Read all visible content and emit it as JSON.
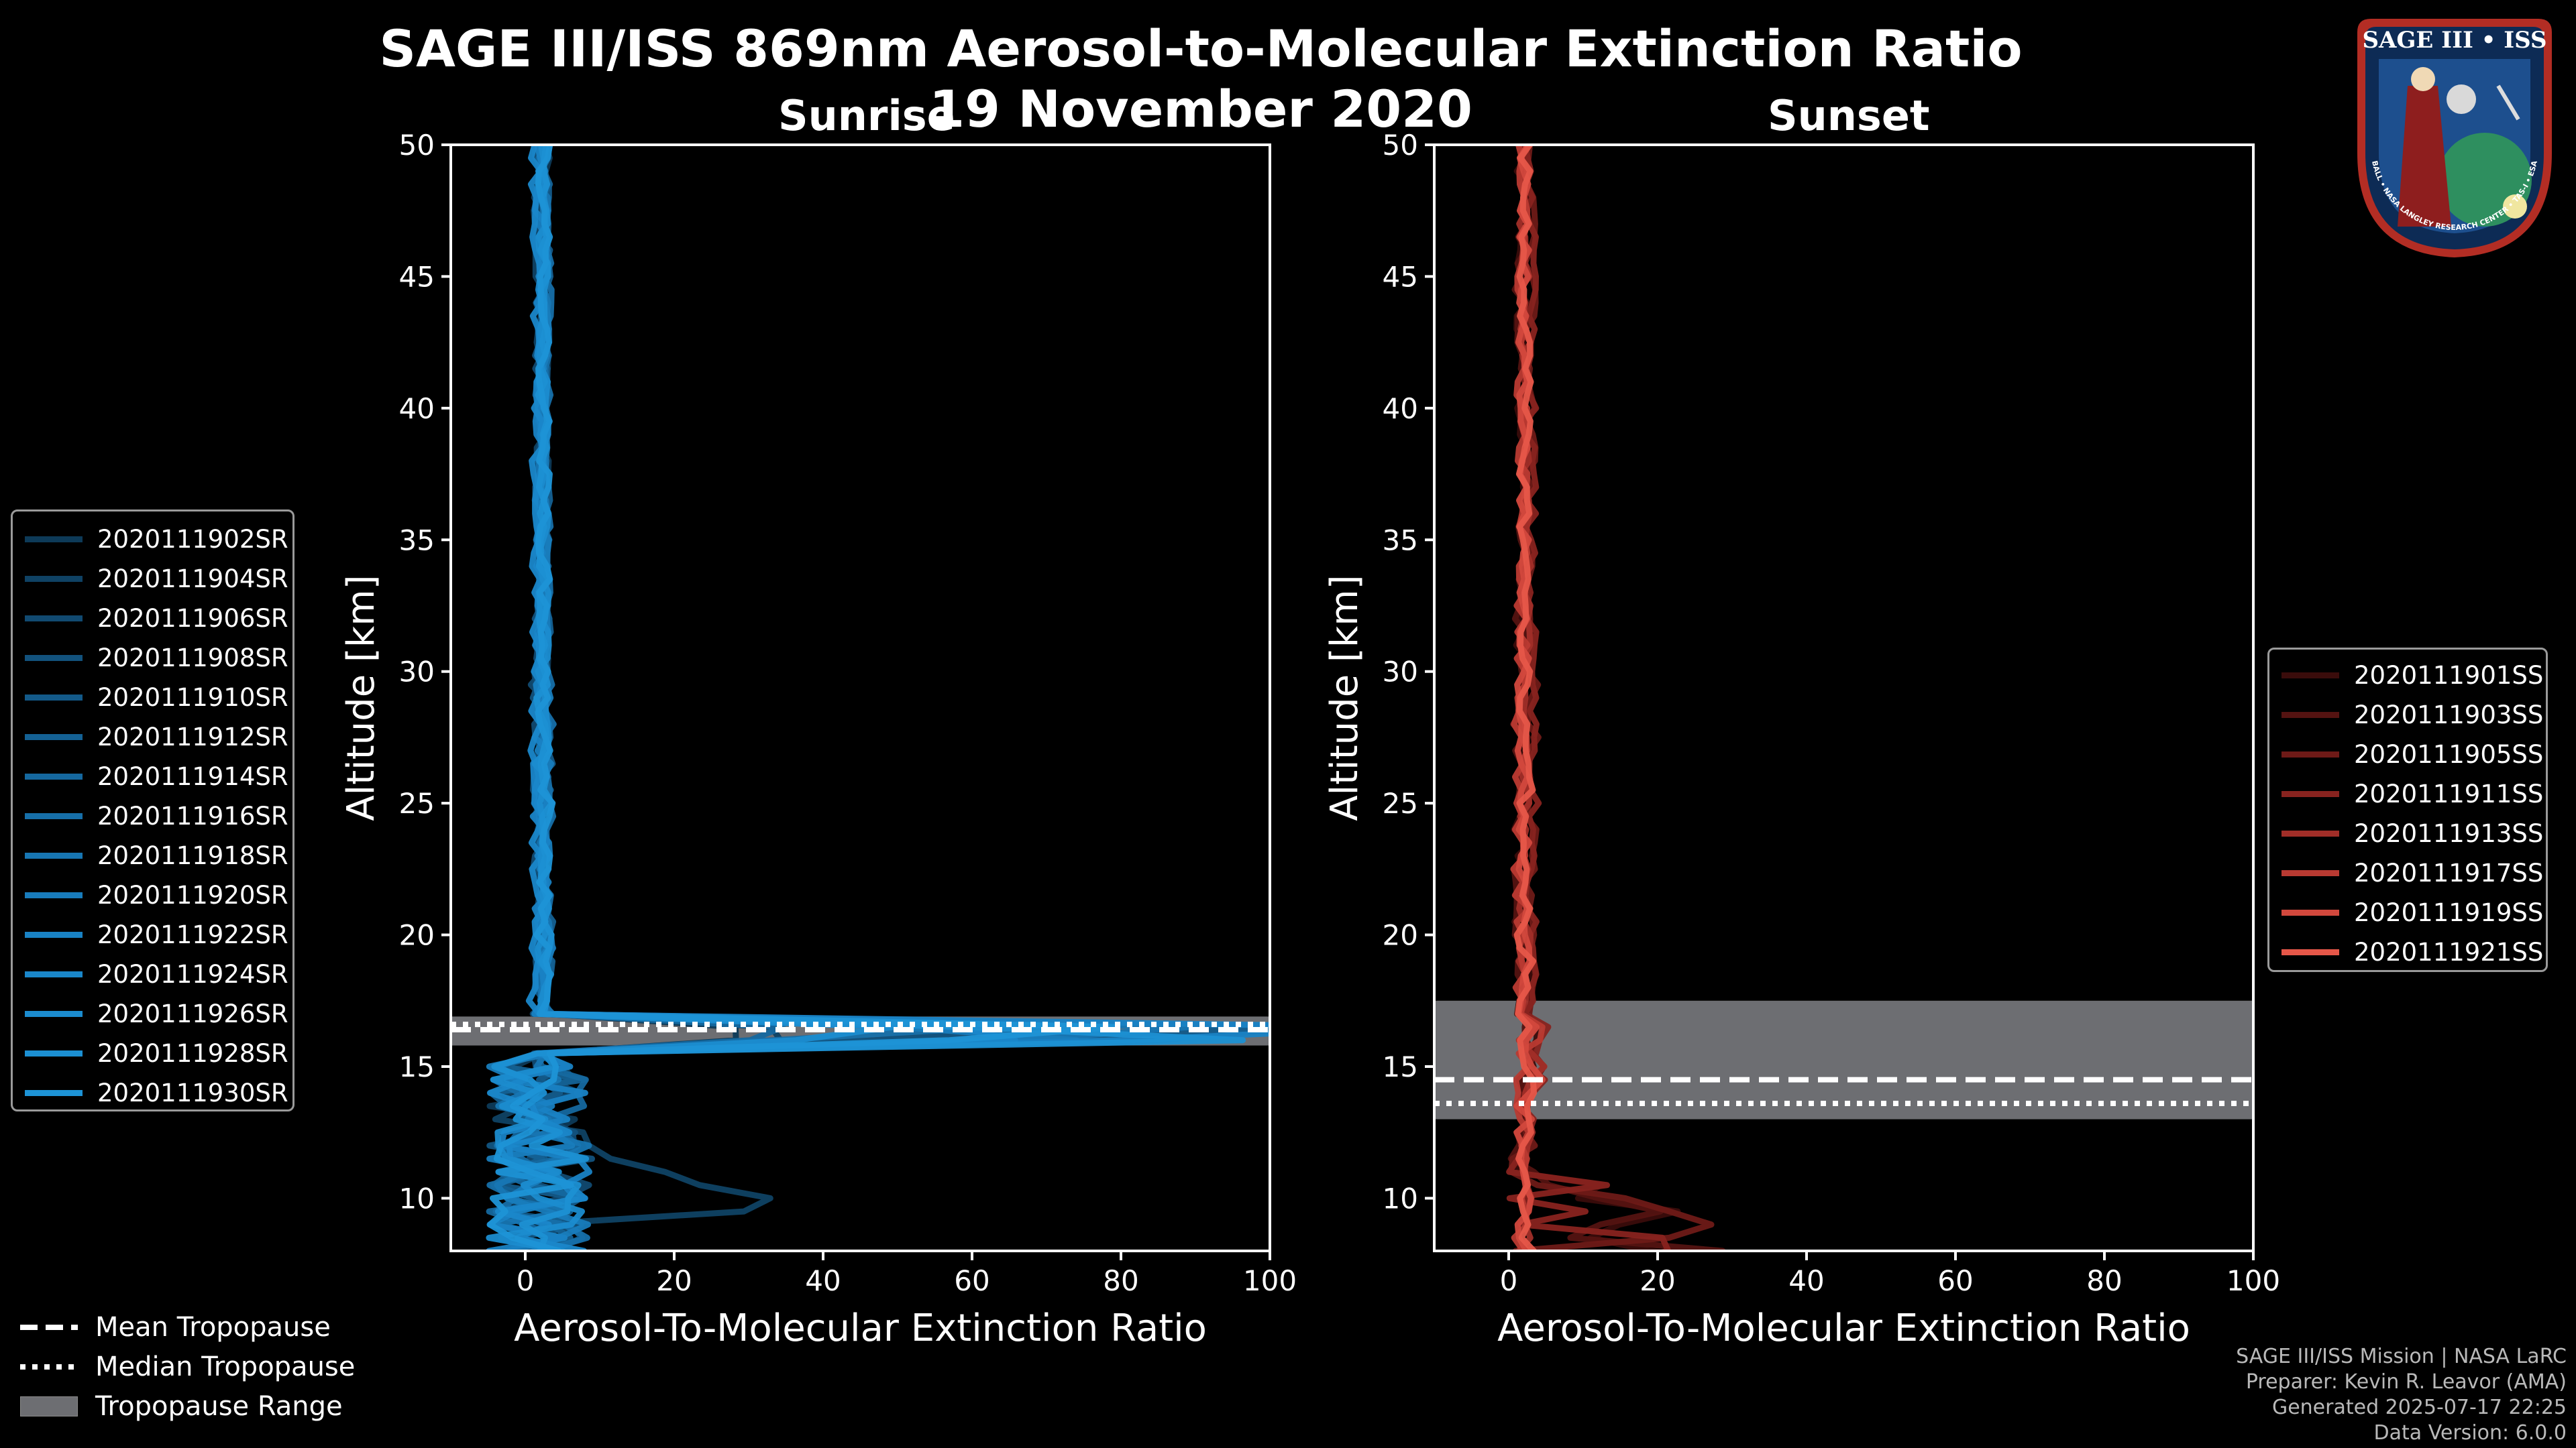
{
  "title": "SAGE III/ISS 869nm Aerosol-to-Molecular Extinction Ratio",
  "date": "19 November 2020",
  "colors": {
    "sunrise": "#1d8fd1",
    "sunset": "#e8584a",
    "tropo_range": "#6d6e72"
  },
  "chart_data": [
    {
      "type": "line",
      "panel": "Sunrise",
      "title": "Sunrise",
      "xlabel": "Aerosol-To-Molecular Extinction Ratio",
      "ylabel": "Altitude [km]",
      "xlim": [
        -10,
        100
      ],
      "ylim": [
        8,
        50
      ],
      "xticks": [
        0,
        20,
        40,
        60,
        80,
        100
      ],
      "yticks": [
        10,
        15,
        20,
        25,
        30,
        35,
        40,
        45,
        50
      ],
      "tropopause": {
        "mean": 16.4,
        "median": 16.6,
        "range": [
          15.8,
          16.9
        ]
      },
      "series": [
        {
          "name": "2020111902SR",
          "color": "#0d3a58"
        },
        {
          "name": "2020111904SR",
          "color": "#0f4264"
        },
        {
          "name": "2020111906SR",
          "color": "#114a71"
        },
        {
          "name": "2020111908SR",
          "color": "#12527d"
        },
        {
          "name": "2020111910SR",
          "color": "#135a89"
        },
        {
          "name": "2020111912SR",
          "color": "#146194"
        },
        {
          "name": "2020111914SR",
          "color": "#15689f"
        },
        {
          "name": "2020111916SR",
          "color": "#166fa9"
        },
        {
          "name": "2020111918SR",
          "color": "#1776b3"
        },
        {
          "name": "2020111920SR",
          "color": "#187cbc"
        },
        {
          "name": "2020111922SR",
          "color": "#1982c4"
        },
        {
          "name": "2020111924SR",
          "color": "#1a87ca"
        },
        {
          "name": "2020111926SR",
          "color": "#1b8ccf"
        },
        {
          "name": "2020111928SR",
          "color": "#1c90d3"
        },
        {
          "name": "2020111930SR",
          "color": "#1d93d6"
        }
      ]
    },
    {
      "type": "line",
      "panel": "Sunset",
      "title": "Sunset",
      "xlabel": "Aerosol-To-Molecular Extinction Ratio",
      "ylabel": "Altitude [km]",
      "xlim": [
        -10,
        100
      ],
      "ylim": [
        8,
        50
      ],
      "xticks": [
        0,
        20,
        40,
        60,
        80,
        100
      ],
      "yticks": [
        10,
        15,
        20,
        25,
        30,
        35,
        40,
        45,
        50
      ],
      "tropopause": {
        "mean": 14.5,
        "median": 13.6,
        "range": [
          13.0,
          17.5
        ]
      },
      "series": [
        {
          "name": "2020111901SS",
          "color": "#3a0c0b"
        },
        {
          "name": "2020111903SS",
          "color": "#541311"
        },
        {
          "name": "2020111905SS",
          "color": "#6e1a17"
        },
        {
          "name": "2020111911SS",
          "color": "#88231f"
        },
        {
          "name": "2020111913SS",
          "color": "#a12e28"
        },
        {
          "name": "2020111917SS",
          "color": "#b93a32"
        },
        {
          "name": "2020111919SS",
          "color": "#d2483d"
        },
        {
          "name": "2020111921SS",
          "color": "#e65749"
        }
      ]
    }
  ],
  "bottom_legend": {
    "mean": "Mean Tropopause",
    "median": "Median Tropopause",
    "range": "Tropopause Range"
  },
  "logo": {
    "title": "SAGE III • ISS",
    "ring": "BALL • NASA LANGLEY RESEARCH CENTER • TAS-I • ESA"
  },
  "credits": {
    "line1": "SAGE III/ISS Mission | NASA LaRC",
    "line2": "Preparer: Kevin R. Leavor (AMA)",
    "line3": "Generated 2025-07-17 22:25",
    "line4": "Data Version: 6.0.0"
  }
}
